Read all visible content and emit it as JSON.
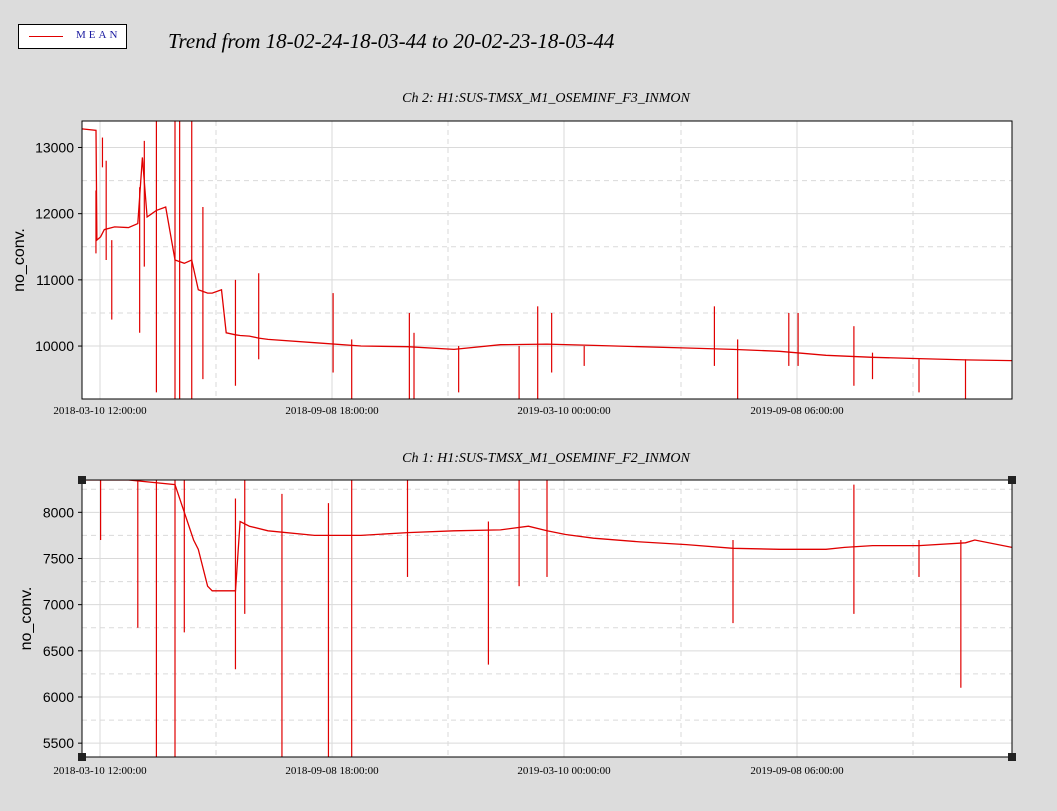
{
  "legend": {
    "label": "MEAN",
    "color": "#e00000"
  },
  "title": "Trend from 18-02-24-18-03-44 to 20-02-23-18-03-44",
  "colors": {
    "background": "#dcdcdc",
    "plot_bg": "#ffffff",
    "trace": "#e00000",
    "grid": "#d8d8d8"
  },
  "chart_data": [
    {
      "type": "line",
      "title": "Ch 2: H1:SUS-TMSX_M1_OSEMINF_F3_INMON",
      "ylabel": "no_conv.",
      "ylim": [
        9200,
        13400
      ],
      "yticks": [
        10000,
        11000,
        12000,
        13000
      ],
      "xlabels": [
        "2018-03-10 12:00:00",
        "2018-09-08 18:00:00",
        "2019-03-10 00:00:00",
        "2019-09-08 06:00:00"
      ],
      "grid": true,
      "series": [
        {
          "name": "MEAN",
          "x": [
            0.0,
            0.015,
            0.016,
            0.02,
            0.024,
            0.035,
            0.05,
            0.06,
            0.065,
            0.07,
            0.075,
            0.08,
            0.09,
            0.1,
            0.11,
            0.118,
            0.125,
            0.135,
            0.14,
            0.15,
            0.155,
            0.165,
            0.17,
            0.18,
            0.19,
            0.2,
            0.25,
            0.3,
            0.35,
            0.4,
            0.45,
            0.5,
            0.55,
            0.6,
            0.65,
            0.7,
            0.75,
            0.8,
            0.85,
            0.9,
            0.95,
            1.0
          ],
          "values": [
            13280,
            13260,
            11600,
            11650,
            11760,
            11800,
            11790,
            11850,
            12850,
            11950,
            12000,
            12050,
            12100,
            11300,
            11250,
            11300,
            10850,
            10800,
            10800,
            10850,
            10200,
            10170,
            10160,
            10150,
            10120,
            10100,
            10050,
            10000,
            9990,
            9950,
            10020,
            10030,
            10010,
            9990,
            9970,
            9950,
            9920,
            9860,
            9830,
            9810,
            9790,
            9780
          ]
        }
      ],
      "spikes": [
        {
          "x": 0.015,
          "values": [
            11400,
            12350
          ]
        },
        {
          "x": 0.022,
          "values": [
            12700,
            13150
          ]
        },
        {
          "x": 0.026,
          "values": [
            11300,
            12800
          ]
        },
        {
          "x": 0.032,
          "values": [
            10400,
            11600
          ]
        },
        {
          "x": 0.062,
          "values": [
            10200,
            12400
          ]
        },
        {
          "x": 0.067,
          "values": [
            11200,
            13100
          ]
        },
        {
          "x": 0.08,
          "values": [
            9300,
            13400
          ]
        },
        {
          "x": 0.1,
          "values": [
            9200,
            13400
          ]
        },
        {
          "x": 0.105,
          "values": [
            9200,
            13400
          ]
        },
        {
          "x": 0.118,
          "values": [
            9200,
            13400
          ]
        },
        {
          "x": 0.13,
          "values": [
            9500,
            12100
          ]
        },
        {
          "x": 0.165,
          "values": [
            9400,
            11000
          ]
        },
        {
          "x": 0.19,
          "values": [
            9800,
            11100
          ]
        },
        {
          "x": 0.27,
          "values": [
            9600,
            10800
          ]
        },
        {
          "x": 0.29,
          "values": [
            9200,
            10100
          ]
        },
        {
          "x": 0.352,
          "values": [
            9200,
            10500
          ]
        },
        {
          "x": 0.357,
          "values": [
            9200,
            10200
          ]
        },
        {
          "x": 0.405,
          "values": [
            9300,
            10000
          ]
        },
        {
          "x": 0.47,
          "values": [
            9200,
            10000
          ]
        },
        {
          "x": 0.49,
          "values": [
            9200,
            10600
          ]
        },
        {
          "x": 0.505,
          "values": [
            9600,
            10500
          ]
        },
        {
          "x": 0.54,
          "values": [
            9700,
            10000
          ]
        },
        {
          "x": 0.68,
          "values": [
            9700,
            10600
          ]
        },
        {
          "x": 0.705,
          "values": [
            9200,
            10100
          ]
        },
        {
          "x": 0.76,
          "values": [
            9700,
            10500
          ]
        },
        {
          "x": 0.77,
          "values": [
            9700,
            10500
          ]
        },
        {
          "x": 0.83,
          "values": [
            9400,
            10300
          ]
        },
        {
          "x": 0.85,
          "values": [
            9500,
            9900
          ]
        },
        {
          "x": 0.9,
          "values": [
            9300,
            9800
          ]
        },
        {
          "x": 0.95,
          "values": [
            9200,
            9800
          ]
        }
      ]
    },
    {
      "type": "line",
      "title": "Ch 1: H1:SUS-TMSX_M1_OSEMINF_F2_INMON",
      "ylabel": "no_conv.",
      "ylim": [
        5350,
        8350
      ],
      "yticks": [
        5500,
        6000,
        6500,
        7000,
        7500,
        8000
      ],
      "xlabels": [
        "2018-03-10 12:00:00",
        "2018-09-08 18:00:00",
        "2019-03-10 00:00:00",
        "2019-09-08 06:00:00"
      ],
      "grid": true,
      "series": [
        {
          "name": "MEAN",
          "x": [
            0.0,
            0.02,
            0.05,
            0.1,
            0.12,
            0.125,
            0.135,
            0.14,
            0.165,
            0.17,
            0.18,
            0.2,
            0.25,
            0.3,
            0.35,
            0.4,
            0.45,
            0.48,
            0.5,
            0.52,
            0.55,
            0.6,
            0.65,
            0.7,
            0.75,
            0.8,
            0.82,
            0.85,
            0.9,
            0.95,
            0.96,
            1.0
          ],
          "values": [
            8350,
            8350,
            8350,
            8300,
            7700,
            7600,
            7200,
            7150,
            7150,
            7900,
            7850,
            7800,
            7750,
            7750,
            7780,
            7800,
            7810,
            7850,
            7800,
            7760,
            7720,
            7680,
            7650,
            7610,
            7600,
            7600,
            7620,
            7640,
            7640,
            7670,
            7700,
            7620
          ]
        }
      ],
      "spikes": [
        {
          "x": 0.02,
          "values": [
            7700,
            8350
          ]
        },
        {
          "x": 0.06,
          "values": [
            6750,
            8350
          ]
        },
        {
          "x": 0.08,
          "values": [
            5350,
            8350
          ]
        },
        {
          "x": 0.1,
          "values": [
            5350,
            8350
          ]
        },
        {
          "x": 0.11,
          "values": [
            6700,
            8350
          ]
        },
        {
          "x": 0.165,
          "values": [
            6300,
            8150
          ]
        },
        {
          "x": 0.175,
          "values": [
            6900,
            8350
          ]
        },
        {
          "x": 0.215,
          "values": [
            5350,
            8200
          ]
        },
        {
          "x": 0.265,
          "values": [
            5350,
            8100
          ]
        },
        {
          "x": 0.29,
          "values": [
            5350,
            8350
          ]
        },
        {
          "x": 0.35,
          "values": [
            7300,
            8350
          ]
        },
        {
          "x": 0.437,
          "values": [
            6350,
            7900
          ]
        },
        {
          "x": 0.47,
          "values": [
            7200,
            8350
          ]
        },
        {
          "x": 0.5,
          "values": [
            7300,
            8350
          ]
        },
        {
          "x": 0.7,
          "values": [
            6800,
            7700
          ]
        },
        {
          "x": 0.83,
          "values": [
            6900,
            8300
          ]
        },
        {
          "x": 0.9,
          "values": [
            7300,
            7700
          ]
        },
        {
          "x": 0.945,
          "values": [
            6100,
            7700
          ]
        }
      ]
    }
  ]
}
